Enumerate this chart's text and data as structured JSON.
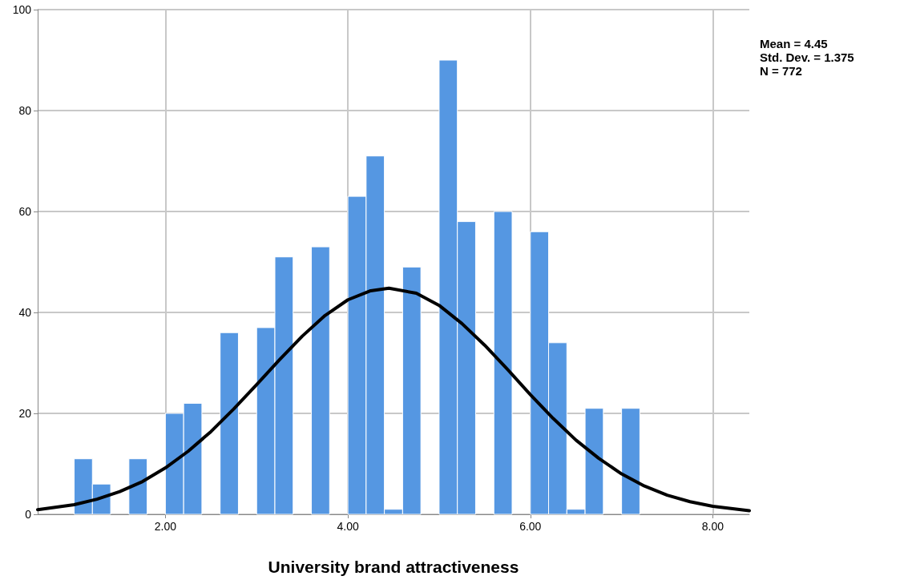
{
  "chart_data": {
    "type": "histogram",
    "xlabel": "University brand attractiveness",
    "bins": [
      1.0,
      1.2,
      1.4,
      1.6,
      1.8,
      2.0,
      2.2,
      2.4,
      2.6,
      2.8,
      3.0,
      3.2,
      3.4,
      3.6,
      3.8,
      4.0,
      4.2,
      4.4,
      4.6,
      4.8,
      5.0,
      5.2,
      5.4,
      5.6,
      5.8,
      6.0,
      6.2,
      6.4,
      6.6,
      6.8,
      7.0,
      7.2
    ],
    "series": [
      {
        "color": "#5597e2",
        "values": [
          11,
          6,
          0,
          11,
          0,
          20,
          22,
          0,
          36,
          0,
          37,
          51,
          0,
          53,
          0,
          63,
          71,
          1,
          49,
          0,
          90,
          58,
          0,
          60,
          0,
          56,
          34,
          1,
          21,
          0,
          21
        ]
      },
      {
        "type": "line",
        "color": "#000000",
        "x": [
          0.6,
          1.0,
          1.25,
          1.5,
          1.75,
          2.0,
          2.25,
          2.5,
          2.75,
          3.0,
          3.25,
          3.5,
          3.75,
          4.0,
          4.25,
          4.45,
          4.75,
          5.0,
          5.25,
          5.5,
          5.75,
          6.0,
          6.25,
          6.5,
          6.75,
          7.0,
          7.25,
          7.5,
          7.75,
          8.0,
          8.4
        ],
        "values": [
          0.9,
          1.9,
          3.0,
          4.5,
          6.5,
          9.2,
          12.5,
          16.4,
          20.9,
          25.7,
          30.6,
          35.3,
          39.4,
          42.5,
          44.3,
          44.8,
          43.8,
          41.4,
          37.8,
          33.5,
          28.7,
          23.7,
          19.0,
          14.7,
          11.1,
          8.0,
          5.6,
          3.8,
          2.5,
          1.6,
          0.7
        ]
      }
    ],
    "xlim": [
      0.6,
      8.4
    ],
    "xticks": [
      {
        "value": 2,
        "label": "2.00"
      },
      {
        "value": 4,
        "label": "4.00"
      },
      {
        "value": 6,
        "label": "6.00"
      },
      {
        "value": 8,
        "label": "8.00"
      }
    ],
    "ylim": [
      0,
      100
    ],
    "yticks": [
      0,
      20,
      40,
      60,
      80,
      100
    ],
    "grid": true,
    "marker": "none",
    "line_style": "solid",
    "annotations": [
      "Mean = 4.45",
      "Std. Dev. = 1.375",
      "N = 772"
    ]
  }
}
